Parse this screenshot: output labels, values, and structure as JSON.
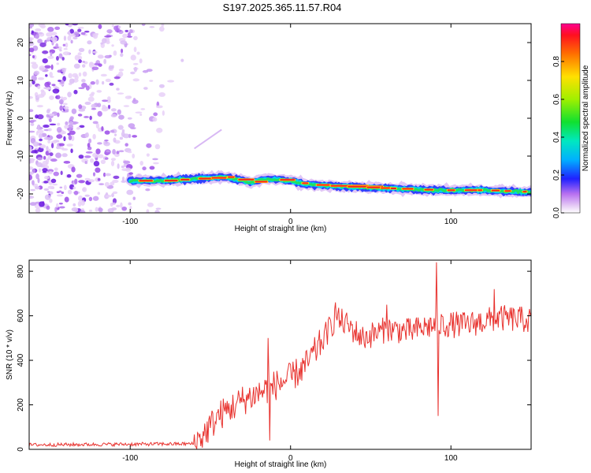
{
  "figure_title": "S197.2025.365.11.57.R04",
  "chart_data": [
    {
      "type": "heatmap",
      "title": "S197.2025.365.11.57.R04",
      "xlabel": "Height of straight line (km)",
      "ylabel": "Frequency (Hz)",
      "xlim": [
        -163,
        150
      ],
      "ylim": [
        -25,
        25
      ],
      "x_ticks": [
        -100,
        0,
        100
      ],
      "y_ticks": [
        20,
        10,
        0,
        -10,
        -20
      ],
      "colorbar": {
        "label": "Normalized spectral amplitude",
        "range": [
          0,
          1
        ],
        "ticks": [
          "0.0",
          "0.2",
          "0.4",
          "0.6",
          "0.8"
        ],
        "tick_values": [
          0.0,
          0.2,
          0.4,
          0.6,
          0.8
        ]
      },
      "noise_region": {
        "x_from": -163,
        "x_to": -65,
        "amplitude": 0.05
      },
      "spectral_line": {
        "x_start": -100,
        "x_end": 150,
        "freq_points": [
          {
            "x": -100,
            "f": -16.5
          },
          {
            "x": -80,
            "f": -16.5
          },
          {
            "x": -60,
            "f": -16.0
          },
          {
            "x": -40,
            "f": -15.5
          },
          {
            "x": -25,
            "f": -17.0
          },
          {
            "x": -15,
            "f": -16.0
          },
          {
            "x": 0,
            "f": -16.5
          },
          {
            "x": 10,
            "f": -17.5
          },
          {
            "x": 30,
            "f": -18.0
          },
          {
            "x": 60,
            "f": -18.5
          },
          {
            "x": 90,
            "f": -19.0
          },
          {
            "x": 120,
            "f": -19.0
          },
          {
            "x": 150,
            "f": -19.5
          }
        ]
      }
    },
    {
      "type": "line",
      "xlabel": "Height of straight line (km)",
      "ylabel": "SNR (10 * v/v)",
      "xlim": [
        -163,
        150
      ],
      "ylim": [
        0,
        850
      ],
      "x_ticks": [
        -100,
        0,
        100
      ],
      "y_ticks": [
        0,
        200,
        400,
        600,
        800
      ],
      "series": [
        {
          "name": "SNR",
          "color": "#e8332f",
          "trend": [
            {
              "x": -163,
              "y": 20
            },
            {
              "x": -60,
              "y": 25
            },
            {
              "x": -55,
              "y": 60
            },
            {
              "x": -45,
              "y": 150
            },
            {
              "x": -30,
              "y": 220
            },
            {
              "x": -15,
              "y": 270
            },
            {
              "x": 0,
              "y": 320
            },
            {
              "x": 10,
              "y": 380
            },
            {
              "x": 20,
              "y": 490
            },
            {
              "x": 28,
              "y": 590
            },
            {
              "x": 35,
              "y": 560
            },
            {
              "x": 45,
              "y": 500
            },
            {
              "x": 60,
              "y": 540
            },
            {
              "x": 75,
              "y": 530
            },
            {
              "x": 90,
              "y": 560
            },
            {
              "x": 110,
              "y": 560
            },
            {
              "x": 130,
              "y": 590
            },
            {
              "x": 150,
              "y": 580
            }
          ],
          "spikes": [
            {
              "x": -14,
              "y": 500
            },
            {
              "x": -13,
              "y": 40
            },
            {
              "x": 91,
              "y": 840
            },
            {
              "x": 92,
              "y": 150
            },
            {
              "x": 28,
              "y": 660
            },
            {
              "x": 60,
              "y": 650
            },
            {
              "x": 127,
              "y": 720
            }
          ]
        }
      ]
    }
  ]
}
